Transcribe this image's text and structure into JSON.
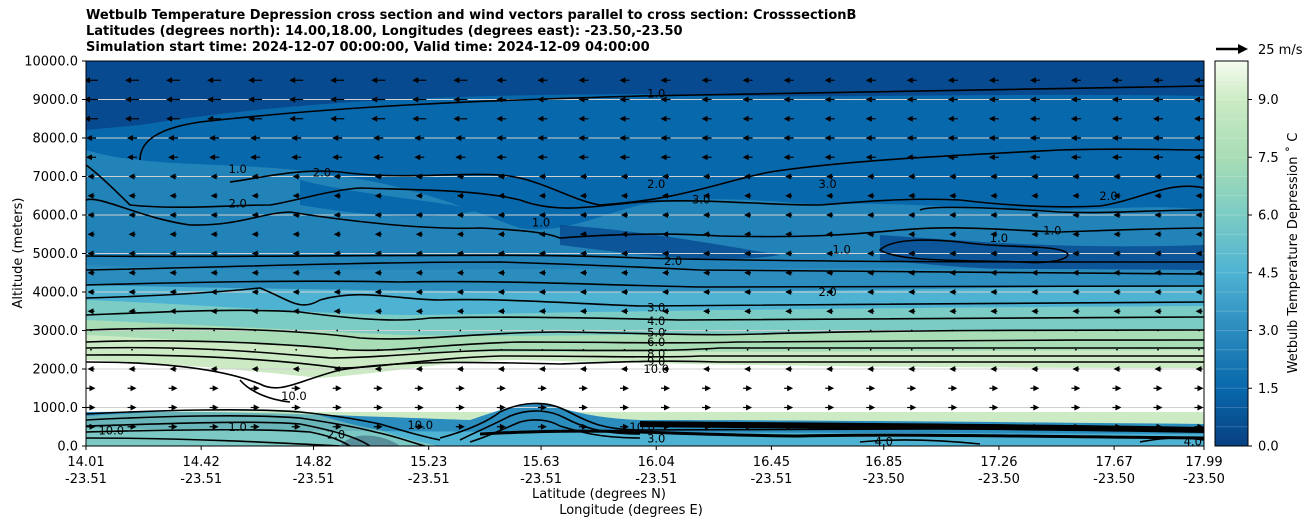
{
  "chart_data": {
    "type": "heatmap",
    "title_lines": [
      "Wetbulb Temperature Depression cross section and wind vectors parallel to cross section: CrosssectionB",
      "Latitudes (degrees north): 14.00,18.00, Longitudes (degrees east): -23.50,-23.50",
      "Simulation start time: 2024-12-07 00:00:00, Valid time: 2024-12-09 04:00:00"
    ],
    "xlabel_lat": "Latitude (degrees N)",
    "xlabel_lon": "Longitude (degrees E)",
    "ylabel": "Altitude (meters)",
    "ylim": [
      0,
      10000
    ],
    "y_ticks": [
      "0.0",
      "1000.0",
      "2000.0",
      "3000.0",
      "4000.0",
      "5000.0",
      "6000.0",
      "7000.0",
      "8000.0",
      "9000.0",
      "10000.0"
    ],
    "y_tick_values": [
      0,
      1000,
      2000,
      3000,
      4000,
      5000,
      6000,
      7000,
      8000,
      9000,
      10000
    ],
    "x_range_lat": [
      14.01,
      17.99
    ],
    "x_ticks": [
      {
        "lat": "14.01",
        "lon": "-23.51",
        "value": 14.01
      },
      {
        "lat": "14.42",
        "lon": "-23.51",
        "value": 14.42
      },
      {
        "lat": "14.82",
        "lon": "-23.51",
        "value": 14.82
      },
      {
        "lat": "15.23",
        "lon": "-23.51",
        "value": 15.23
      },
      {
        "lat": "15.63",
        "lon": "-23.51",
        "value": 15.63
      },
      {
        "lat": "16.04",
        "lon": "-23.51",
        "value": 16.04
      },
      {
        "lat": "16.45",
        "lon": "-23.51",
        "value": 16.45
      },
      {
        "lat": "16.85",
        "lon": "-23.50",
        "value": 16.85
      },
      {
        "lat": "17.26",
        "lon": "-23.50",
        "value": 17.26
      },
      {
        "lat": "17.67",
        "lon": "-23.50",
        "value": 17.67
      },
      {
        "lat": "17.99",
        "lon": "-23.50",
        "value": 17.99
      }
    ],
    "colorbar": {
      "label": "Wetbulb Temperature Depression $^\\circ$C",
      "label_display": "Wetbulb Temperature Depression ˚ C",
      "range": [
        0,
        10
      ],
      "ticks": [
        "0.0",
        "1.5",
        "3.0",
        "4.5",
        "6.0",
        "7.5",
        "9.0"
      ],
      "tick_values": [
        0,
        1.5,
        3.0,
        4.5,
        6.0,
        7.5,
        9.0
      ],
      "colormap": "GnBu_r"
    },
    "wind_key": "25 m/s",
    "contour_labels": [
      {
        "text": "1.0",
        "lat": 16.04,
        "alt": 9150
      },
      {
        "text": "1.0",
        "lat": 15.63,
        "alt": 5800
      },
      {
        "text": "1.0",
        "lat": 16.7,
        "alt": 5100
      },
      {
        "text": "1.0",
        "lat": 17.26,
        "alt": 5400
      },
      {
        "text": "1.0",
        "lat": 17.45,
        "alt": 5600
      },
      {
        "text": "1.0",
        "lat": 14.55,
        "alt": 7200
      },
      {
        "text": "2.0",
        "lat": 14.85,
        "alt": 7100
      },
      {
        "text": "2.0",
        "lat": 14.55,
        "alt": 6300
      },
      {
        "text": "2.0",
        "lat": 16.04,
        "alt": 6800
      },
      {
        "text": "2.0",
        "lat": 16.1,
        "alt": 4800
      },
      {
        "text": "2.0",
        "lat": 17.65,
        "alt": 6500
      },
      {
        "text": "2.0",
        "lat": 16.65,
        "alt": 4000
      },
      {
        "text": "3.0",
        "lat": 16.65,
        "alt": 6800
      },
      {
        "text": "3.0",
        "lat": 16.2,
        "alt": 6400
      },
      {
        "text": "3.0",
        "lat": 16.04,
        "alt": 3600
      },
      {
        "text": "4.0",
        "lat": 16.04,
        "alt": 3250
      },
      {
        "text": "5.0",
        "lat": 16.04,
        "alt": 2950
      },
      {
        "text": "6.0",
        "lat": 16.04,
        "alt": 2700
      },
      {
        "text": "8.0",
        "lat": 16.04,
        "alt": 2400
      },
      {
        "text": "9.0",
        "lat": 16.04,
        "alt": 2200
      },
      {
        "text": "10.0",
        "lat": 16.04,
        "alt": 2000
      },
      {
        "text": "10.0",
        "lat": 14.1,
        "alt": 400
      },
      {
        "text": "10.0",
        "lat": 15.2,
        "alt": 550
      },
      {
        "text": "10.0",
        "lat": 14.75,
        "alt": 1300
      },
      {
        "text": "1.0",
        "lat": 14.55,
        "alt": 500
      },
      {
        "text": "2.0",
        "lat": 14.9,
        "alt": 300
      },
      {
        "text": "4.0",
        "lat": 16.85,
        "alt": 120
      },
      {
        "text": "4.0",
        "lat": 17.95,
        "alt": 120
      },
      {
        "text": "3.0",
        "lat": 16.04,
        "alt": 200
      },
      {
        "text": "10.0",
        "lat": 15.99,
        "alt": 500
      }
    ]
  }
}
